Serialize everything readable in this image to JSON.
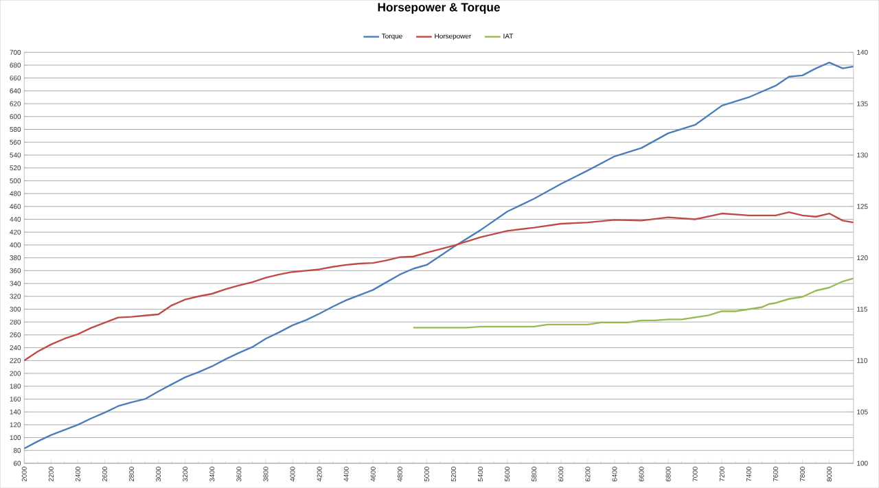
{
  "chart_data": {
    "type": "line",
    "title": "Horsepower & Torque",
    "x": [
      2000,
      2100,
      2200,
      2300,
      2400,
      2500,
      2600,
      2700,
      2800,
      2900,
      3000,
      3100,
      3200,
      3300,
      3400,
      3500,
      3600,
      3700,
      3800,
      3900,
      4000,
      4100,
      4200,
      4300,
      4400,
      4500,
      4600,
      4700,
      4800,
      4900,
      5000,
      5200,
      5400,
      5600,
      5800,
      6000,
      6200,
      6400,
      6600,
      6800,
      7000,
      7200,
      7400,
      7600,
      7700,
      7800,
      7900,
      8000,
      8100,
      8180
    ],
    "series": [
      {
        "name": "Torque",
        "color": "#4a7ebb",
        "values": [
          83,
          94,
          104,
          112,
          120,
          130,
          139,
          149,
          155,
          160,
          172,
          183,
          194,
          202,
          211,
          222,
          232,
          241,
          254,
          264,
          275,
          283,
          293,
          304,
          314,
          322,
          330,
          342,
          354,
          363,
          369,
          397,
          423,
          452,
          472,
          495,
          516,
          538,
          551,
          574,
          587,
          617,
          630,
          648,
          662,
          664,
          675,
          684,
          675,
          678
        ]
      },
      {
        "name": "Horsepower",
        "color": "#be4b48",
        "values": [
          220,
          234,
          245,
          254,
          261,
          271,
          279,
          287,
          288,
          290,
          292,
          306,
          315,
          320,
          324,
          331,
          337,
          342,
          349,
          354,
          358,
          360,
          362,
          366,
          369,
          371,
          372,
          376,
          381,
          382,
          388,
          399,
          412,
          422,
          427,
          433,
          435,
          439,
          438,
          443,
          440,
          449,
          446,
          446,
          451,
          446,
          444,
          449,
          438,
          435
        ]
      },
      {
        "name": "IAT",
        "color": "#98b954",
        "axis": "y2",
        "x": [
          4900,
          5300,
          5400,
          5800,
          5900,
          6200,
          6300,
          6500,
          6600,
          6700,
          6800,
          6900,
          7000,
          7100,
          7200,
          7300,
          7400,
          7500,
          7550,
          7600,
          7700,
          7800,
          7900,
          8000,
          8100,
          8180
        ],
        "values": [
          113.2,
          113.2,
          113.3,
          113.3,
          113.5,
          113.5,
          113.7,
          113.7,
          113.9,
          113.9,
          114.0,
          114.0,
          114.2,
          114.4,
          114.8,
          114.8,
          115.0,
          115.2,
          115.5,
          115.6,
          116.0,
          116.2,
          116.8,
          117.1,
          117.7,
          118.0
        ]
      }
    ],
    "xlim": [
      2000,
      8180
    ],
    "xticks": [
      2000,
      2200,
      2400,
      2600,
      2800,
      3000,
      3200,
      3400,
      3600,
      3800,
      4000,
      4200,
      4400,
      4600,
      4800,
      5000,
      5200,
      5400,
      5600,
      5800,
      6000,
      6200,
      6400,
      6600,
      6800,
      7000,
      7200,
      7400,
      7600,
      7800,
      8000
    ],
    "ylim": [
      60,
      700
    ],
    "yticks": [
      60,
      80,
      100,
      120,
      140,
      160,
      180,
      200,
      220,
      240,
      260,
      280,
      300,
      320,
      340,
      360,
      380,
      400,
      420,
      440,
      460,
      480,
      500,
      520,
      540,
      560,
      580,
      600,
      620,
      640,
      660,
      680,
      700
    ],
    "y2lim": [
      100,
      140
    ],
    "y2ticks": [
      100,
      105,
      110,
      115,
      120,
      125,
      130,
      135,
      140
    ],
    "grid": "y",
    "legend": "top",
    "marker": "none",
    "line_style": "solid"
  }
}
